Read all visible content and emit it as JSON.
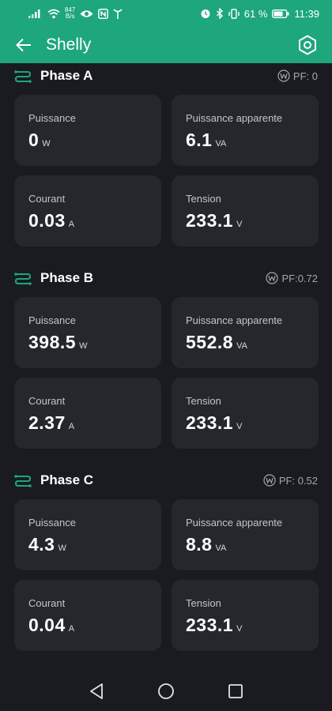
{
  "status_bar": {
    "net_speed_value": "847",
    "net_speed_unit": "B/s",
    "battery": "61 %",
    "time": "11:39"
  },
  "app_bar": {
    "title": "Shelly"
  },
  "colors": {
    "accent": "#1ea67d",
    "background": "#1a1b20",
    "card": "#25272d"
  },
  "phases": [
    {
      "title": "Phase A",
      "pf": "PF: 0",
      "cards": [
        {
          "label": "Puissance",
          "value": "0",
          "unit": "W"
        },
        {
          "label": "Puissance apparente",
          "value": "6.1",
          "unit": "VA"
        },
        {
          "label": "Courant",
          "value": "0.03",
          "unit": "A"
        },
        {
          "label": "Tension",
          "value": "233.1",
          "unit": "V"
        }
      ]
    },
    {
      "title": "Phase B",
      "pf": "PF:0.72",
      "cards": [
        {
          "label": "Puissance",
          "value": "398.5",
          "unit": "W"
        },
        {
          "label": "Puissance apparente",
          "value": "552.8",
          "unit": "VA"
        },
        {
          "label": "Courant",
          "value": "2.37",
          "unit": "A"
        },
        {
          "label": "Tension",
          "value": "233.1",
          "unit": "V"
        }
      ]
    },
    {
      "title": "Phase C",
      "pf": "PF: 0.52",
      "cards": [
        {
          "label": "Puissance",
          "value": "4.3",
          "unit": "W"
        },
        {
          "label": "Puissance apparente",
          "value": "8.8",
          "unit": "VA"
        },
        {
          "label": "Courant",
          "value": "0.04",
          "unit": "A"
        },
        {
          "label": "Tension",
          "value": "233.1",
          "unit": "V"
        }
      ]
    }
  ],
  "icons": {
    "back": "arrow-left-icon",
    "settings": "hexagon-settings-icon",
    "phase": "phase-connection-icon",
    "pf": "watt-circle-icon",
    "nav_back": "triangle-back-icon",
    "nav_home": "circle-home-icon",
    "nav_recents": "square-recents-icon"
  }
}
